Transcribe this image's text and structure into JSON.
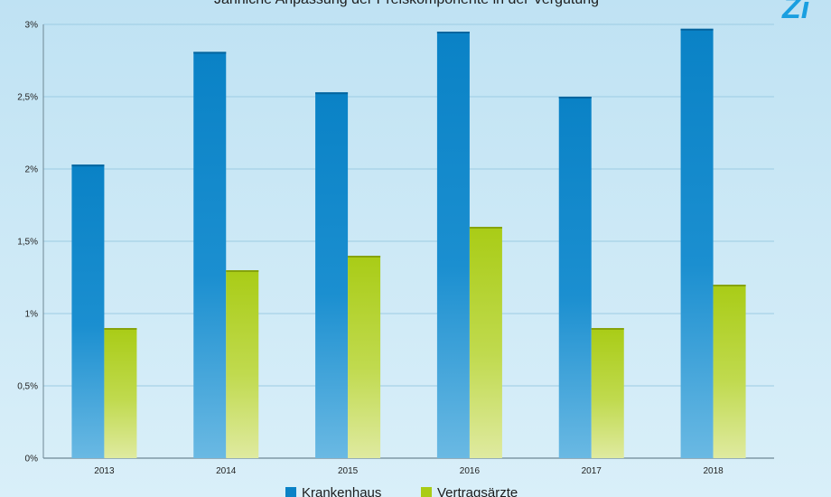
{
  "logo": {
    "text": "Zi"
  },
  "colors": {
    "Krankenhaus": "#0a82c6",
    "Vertragsärzte": "#a9cc16",
    "grid": "#9ccbe3",
    "axis": "#6e8794"
  },
  "chart_data": {
    "type": "bar",
    "title": "Jährliche Anpassung der Preiskomponente in der Vergütung",
    "categories": [
      "2013",
      "2014",
      "2015",
      "2016",
      "2017",
      "2018"
    ],
    "series": [
      {
        "name": "Krankenhaus",
        "values": [
          2.03,
          2.81,
          2.53,
          2.95,
          2.5,
          2.97
        ]
      },
      {
        "name": "Vertragsärzte",
        "values": [
          0.9,
          1.3,
          1.4,
          1.6,
          0.9,
          1.2
        ]
      }
    ],
    "ylim": [
      0,
      3
    ],
    "yticks": [
      "0%",
      "0,5%",
      "1%",
      "1,5%",
      "2%",
      "2,5%",
      "3%"
    ],
    "grid": true,
    "legend_position": "bottom"
  }
}
